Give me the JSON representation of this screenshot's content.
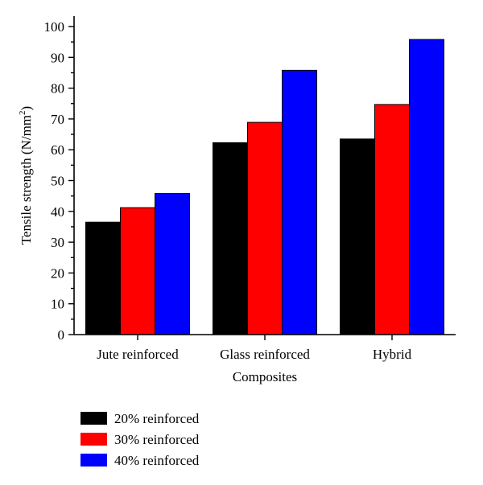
{
  "chart_data": {
    "type": "bar",
    "title": "",
    "xlabel": "Composites",
    "ylabel": "Tensile strength (N/mm",
    "ylabel_superscript": "2",
    "ylabel_suffix": ")",
    "ylim": [
      0,
      100
    ],
    "ytick_step": 10,
    "yticks": [
      "0",
      "10",
      "20",
      "30",
      "40",
      "50",
      "60",
      "70",
      "80",
      "90",
      "100"
    ],
    "grid": false,
    "legend_position": "bottom-left",
    "categories": [
      "Jute reinforced",
      "Glass reinforced",
      "Hybrid"
    ],
    "series": [
      {
        "name": "20% reinforced",
        "color": "#000000",
        "values": [
          36.5,
          62.3,
          63.5
        ]
      },
      {
        "name": "30% reinforced",
        "color": "#ff0000",
        "values": [
          41.2,
          68.9,
          74.7
        ]
      },
      {
        "name": "40% reinforced",
        "color": "#0000ff",
        "values": [
          45.8,
          85.8,
          95.8
        ]
      }
    ]
  }
}
